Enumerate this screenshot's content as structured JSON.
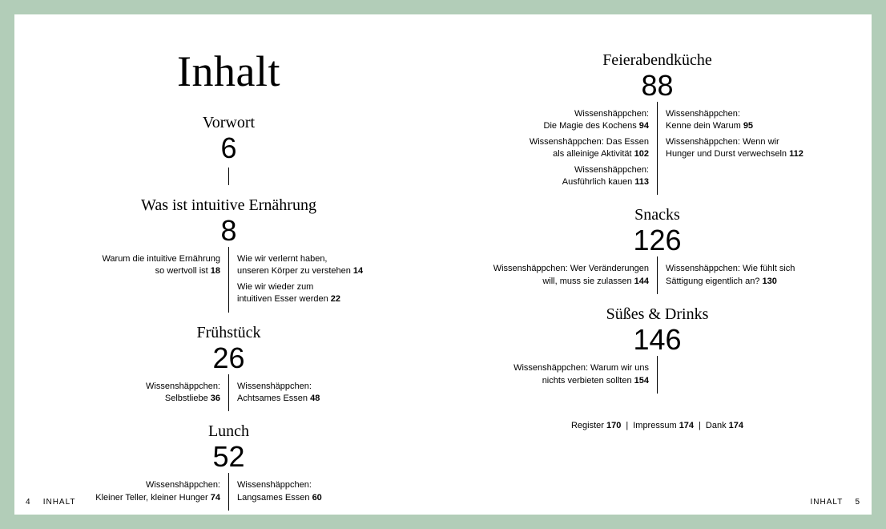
{
  "title": "Inhalt",
  "footer": {
    "label": "INHALT",
    "left_num": "4",
    "right_num": "5"
  },
  "left_page": {
    "sections": [
      {
        "title": "Vorwort",
        "num": "6",
        "left": [],
        "right": [],
        "connector_after": true
      },
      {
        "title": "Was ist intuitive Ernährung",
        "num": "8",
        "left": [
          {
            "text": "Warum die intuitive Ernährung\nso wertvoll ist",
            "pg": "18"
          }
        ],
        "right": [
          {
            "text": "Wie wir verlernt haben,\nunseren Körper zu verstehen",
            "pg": "14"
          },
          {
            "text": "Wie wir wieder zum\nintuitiven Esser werden",
            "pg": "22"
          }
        ]
      },
      {
        "title": "Frühstück",
        "num": "26",
        "left": [
          {
            "text": "Wissenshäppchen:\nSelbstliebe",
            "pg": "36"
          }
        ],
        "right": [
          {
            "text": "Wissenshäppchen:\nAchtsames Essen",
            "pg": "48"
          }
        ]
      },
      {
        "title": "Lunch",
        "num": "52",
        "left": [
          {
            "text": "Wissenshäppchen:\nKleiner Teller, kleiner Hunger",
            "pg": "74"
          }
        ],
        "right": [
          {
            "text": "Wissenshäppchen:\nLangsames Essen",
            "pg": "60"
          }
        ]
      }
    ]
  },
  "right_page": {
    "sections": [
      {
        "title": "Feierabendküche",
        "num": "88",
        "left": [
          {
            "text": "Wissenshäppchen:\nDie Magie des Kochens",
            "pg": "94"
          },
          {
            "text": "Wissenshäppchen: Das Essen\nals alleinige Aktivität",
            "pg": "102"
          },
          {
            "text": "Wissenshäppchen:\nAusführlich kauen",
            "pg": "113"
          }
        ],
        "right": [
          {
            "text": "Wissenshäppchen:\nKenne dein Warum",
            "pg": "95"
          },
          {
            "text": "Wissenshäppchen: Wenn wir\nHunger und Durst verwechseln",
            "pg": "112"
          }
        ]
      },
      {
        "title": "Snacks",
        "num": "126",
        "left": [
          {
            "text": "Wissenshäppchen: Wer Veränderungen\nwill, muss sie zulassen",
            "pg": "144"
          }
        ],
        "right": [
          {
            "text": "Wissenshäppchen: Wie fühlt sich\nSättigung eigentlich an?",
            "pg": "130"
          }
        ]
      },
      {
        "title": "Süßes & Drinks",
        "num": "146",
        "left": [
          {
            "text": "Wissenshäppchen: Warum wir uns\nnichts verbieten sollten",
            "pg": "154"
          }
        ],
        "right": []
      }
    ],
    "endline": [
      {
        "text": "Register",
        "pg": "170"
      },
      {
        "text": "Impressum",
        "pg": "174"
      },
      {
        "text": "Dank",
        "pg": "174"
      }
    ]
  }
}
